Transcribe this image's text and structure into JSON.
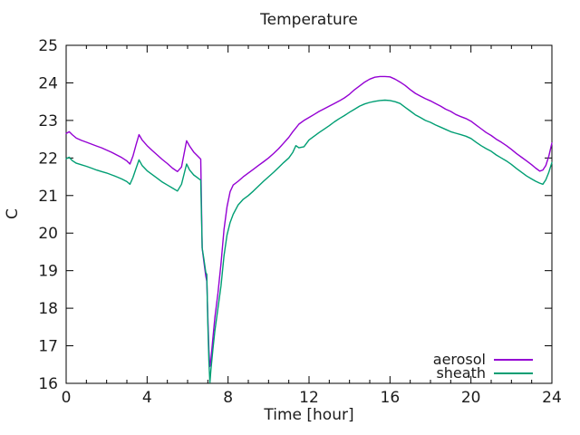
{
  "chart_data": {
    "type": "line",
    "title": "Temperature",
    "xlabel": "Time [hour]",
    "ylabel": "C",
    "xlim": [
      0,
      24
    ],
    "ylim": [
      16,
      25
    ],
    "x_major_ticks": [
      0,
      4,
      8,
      12,
      16,
      20,
      24
    ],
    "x_minor_tick_step": 1,
    "y_major_ticks": [
      16,
      17,
      18,
      19,
      20,
      21,
      22,
      23,
      24,
      25
    ],
    "grid": false,
    "legend_position": "inside bottom-right",
    "colors": {
      "axis": "#000000",
      "text": "#1c1c1c",
      "background": "#ffffff"
    },
    "x": [
      0,
      0.15,
      0.3,
      0.5,
      0.75,
      1,
      1.25,
      1.5,
      1.75,
      2,
      2.25,
      2.5,
      2.75,
      3,
      3.15,
      3.3,
      3.45,
      3.6,
      3.75,
      4,
      4.25,
      4.5,
      4.75,
      5,
      5.25,
      5.5,
      5.7,
      5.95,
      6.1,
      6.3,
      6.5,
      6.65,
      6.72,
      6.8,
      6.9,
      6.95,
      7,
      7.05,
      7.1,
      7.15,
      7.25,
      7.35,
      7.5,
      7.65,
      7.8,
      7.95,
      8.1,
      8.25,
      8.5,
      8.75,
      9,
      9.25,
      9.5,
      9.75,
      10,
      10.25,
      10.5,
      10.75,
      11,
      11.2,
      11.35,
      11.5,
      11.75,
      12,
      12.25,
      12.5,
      12.75,
      13,
      13.25,
      13.5,
      13.75,
      14,
      14.25,
      14.5,
      14.75,
      15,
      15.25,
      15.5,
      15.75,
      16,
      16.25,
      16.5,
      16.75,
      17,
      17.25,
      17.5,
      17.75,
      18,
      18.25,
      18.5,
      18.75,
      19,
      19.25,
      19.5,
      19.75,
      20,
      20.25,
      20.5,
      20.75,
      21,
      21.25,
      21.5,
      21.75,
      22,
      22.25,
      22.5,
      22.75,
      23,
      23.2,
      23.4,
      23.55,
      23.7,
      23.85,
      24
    ],
    "series": [
      {
        "name": "aerosol",
        "color": "#9400d3",
        "values": [
          22.65,
          22.7,
          22.62,
          22.53,
          22.47,
          22.42,
          22.37,
          22.32,
          22.27,
          22.21,
          22.15,
          22.08,
          22.01,
          21.92,
          21.84,
          22.05,
          22.35,
          22.62,
          22.48,
          22.33,
          22.2,
          22.08,
          21.96,
          21.85,
          21.73,
          21.64,
          21.76,
          22.46,
          22.32,
          22.16,
          22.05,
          21.97,
          19.6,
          19.25,
          18.85,
          18.72,
          17.8,
          16.9,
          16.45,
          16.62,
          17.2,
          17.75,
          18.4,
          19.2,
          20.1,
          20.7,
          21.1,
          21.28,
          21.38,
          21.5,
          21.6,
          21.7,
          21.8,
          21.9,
          22.0,
          22.12,
          22.25,
          22.4,
          22.55,
          22.7,
          22.8,
          22.9,
          23.0,
          23.08,
          23.16,
          23.24,
          23.31,
          23.38,
          23.45,
          23.52,
          23.6,
          23.7,
          23.82,
          23.92,
          24.02,
          24.1,
          24.15,
          24.17,
          24.17,
          24.16,
          24.1,
          24.02,
          23.93,
          23.82,
          23.72,
          23.65,
          23.58,
          23.52,
          23.45,
          23.38,
          23.3,
          23.24,
          23.16,
          23.1,
          23.05,
          22.98,
          22.88,
          22.78,
          22.68,
          22.6,
          22.5,
          22.42,
          22.33,
          22.23,
          22.12,
          22.02,
          21.92,
          21.82,
          21.73,
          21.65,
          21.68,
          21.8,
          22.05,
          22.4
        ]
      },
      {
        "name": "sheath",
        "color": "#009e73",
        "values": [
          21.98,
          22.02,
          21.93,
          21.86,
          21.82,
          21.78,
          21.73,
          21.68,
          21.64,
          21.6,
          21.55,
          21.5,
          21.44,
          21.37,
          21.3,
          21.48,
          21.72,
          21.95,
          21.8,
          21.66,
          21.56,
          21.46,
          21.36,
          21.28,
          21.2,
          21.12,
          21.3,
          21.84,
          21.68,
          21.55,
          21.47,
          21.41,
          19.6,
          19.32,
          18.95,
          18.9,
          17.6,
          16.6,
          16.02,
          16.35,
          16.9,
          17.4,
          18.0,
          18.6,
          19.4,
          19.95,
          20.28,
          20.5,
          20.75,
          20.9,
          21.0,
          21.12,
          21.25,
          21.38,
          21.5,
          21.62,
          21.75,
          21.88,
          22.0,
          22.15,
          22.33,
          22.27,
          22.3,
          22.48,
          22.58,
          22.68,
          22.77,
          22.86,
          22.96,
          23.05,
          23.13,
          23.22,
          23.3,
          23.38,
          23.44,
          23.48,
          23.51,
          23.53,
          23.54,
          23.53,
          23.5,
          23.45,
          23.35,
          23.25,
          23.15,
          23.08,
          23.0,
          22.95,
          22.88,
          22.82,
          22.76,
          22.7,
          22.66,
          22.62,
          22.58,
          22.52,
          22.42,
          22.33,
          22.25,
          22.18,
          22.08,
          22.0,
          21.92,
          21.83,
          21.72,
          21.62,
          21.52,
          21.44,
          21.38,
          21.33,
          21.3,
          21.42,
          21.62,
          21.88
        ]
      }
    ]
  }
}
